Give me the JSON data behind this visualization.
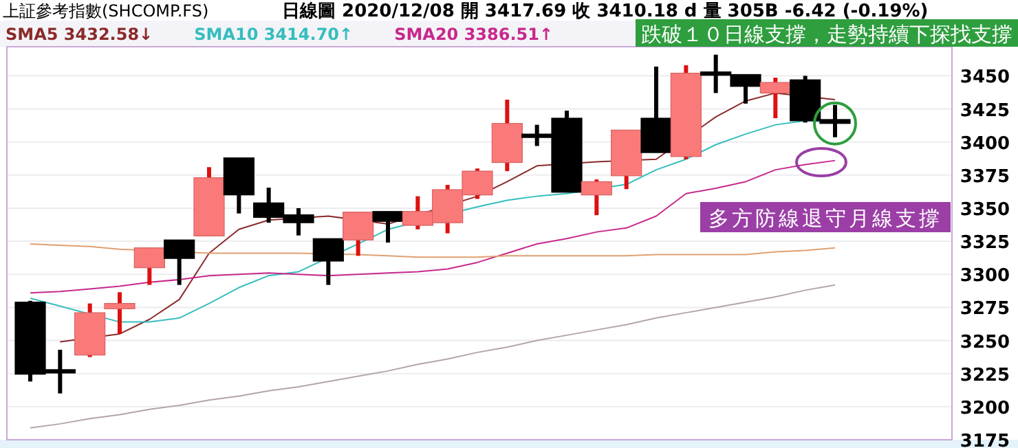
{
  "chart_data": {
    "type": "candlestick",
    "title": "上証參考指數(SHCOMP.FS)",
    "subtitle": "日線圖  2020/12/08  開 3417.69  收 3410.18 d  量 305B  -6.42 (-0.19%)",
    "categories": [
      null,
      null,
      null,
      null,
      null,
      null,
      null,
      null,
      null,
      null,
      null,
      null,
      null,
      null,
      null,
      null,
      null,
      null,
      null,
      null,
      null,
      null,
      null,
      null,
      null,
      null,
      null,
      null
    ],
    "ohlc": [
      [
        3279,
        3280,
        3219,
        3224.5
      ],
      [
        3228,
        3243,
        3210,
        3226
      ],
      [
        3239,
        3278,
        3237.5,
        3271
      ],
      [
        3274,
        3286.5,
        3255,
        3278
      ],
      [
        3305,
        3320,
        3292,
        3320
      ],
      [
        3326,
        3326,
        3292,
        3312
      ],
      [
        3329,
        3381,
        3329,
        3373
      ],
      [
        3388,
        3388,
        3346,
        3360
      ],
      [
        3354,
        3365.5,
        3339,
        3343
      ],
      [
        3345,
        3350,
        3329.4,
        3339
      ],
      [
        3327,
        3327,
        3292,
        3310
      ],
      [
        3326,
        3347,
        3314,
        3347
      ],
      [
        3347.5,
        3347.5,
        3324,
        3340
      ],
      [
        3337,
        3359,
        3334,
        3347.5
      ],
      [
        3339,
        3367.6,
        3331,
        3364
      ],
      [
        3360,
        3380,
        3357,
        3378
      ],
      [
        3384.5,
        3432,
        3378,
        3414
      ],
      [
        3406,
        3413,
        3397,
        3404
      ],
      [
        3418,
        3423.7,
        3362,
        3362
      ],
      [
        3360,
        3371.7,
        3344.7,
        3370
      ],
      [
        3374.5,
        3409,
        3364.4,
        3409
      ],
      [
        3418,
        3457,
        3392,
        3392
      ],
      [
        3389,
        3458,
        3387,
        3452
      ],
      [
        3453,
        3466,
        3437,
        3451
      ],
      [
        3451,
        3451,
        3429,
        3442
      ],
      [
        3437,
        3448.6,
        3418,
        3445
      ],
      [
        3447,
        3450,
        3414.7,
        3416
      ],
      [
        3417,
        3428,
        3403.6,
        3414
      ]
    ],
    "series": [
      {
        "name": "SMA5 3432.58↓",
        "type": "line",
        "color": "#8b2a2a",
        "values": [
          null,
          3249,
          null,
          3255,
          3266,
          3281,
          3316,
          3334,
          3341,
          null,
          3344,
          null,
          3338,
          null,
          null,
          3359,
          3370,
          3382,
          null,
          3385,
          null,
          3387,
          null,
          3419,
          3431,
          3437,
          null,
          3432
        ]
      },
      {
        "name": "SMA10 3414.70↑",
        "type": "line",
        "color": "#35bdbd",
        "values": [
          3282,
          3276,
          null,
          3264,
          3264,
          3267,
          3278,
          3290,
          3299,
          3302,
          null,
          3323,
          3334,
          null,
          null,
          3351,
          3356,
          3359,
          3361,
          null,
          3368,
          3379,
          3387,
          3398,
          3406,
          3413,
          3416,
          3415
        ]
      },
      {
        "name": "SMA20 3386.51↑",
        "type": "line",
        "color": "#c8288c",
        "values": [
          3286,
          3287,
          3289,
          3291,
          3294,
          3296,
          3299,
          3300,
          3301,
          3300,
          3299,
          3300,
          3301,
          3302,
          3304,
          3309,
          3316,
          3323,
          3327,
          3332,
          3335,
          3344,
          3361,
          3365,
          3370,
          3379,
          3383,
          3386
        ]
      },
      {
        "type": "line",
        "color": "#e0a070",
        "values": [
          3323,
          3322,
          3321,
          3319,
          3318,
          null,
          3316,
          3316,
          3316,
          3316,
          null,
          3315,
          3314,
          3313,
          3313,
          3313,
          3314,
          3314,
          3314,
          3314,
          3314,
          3315,
          3315,
          3315,
          3315,
          3317,
          3318,
          3320
        ]
      },
      {
        "type": "line",
        "color": "#b4a4a8",
        "values": [
          3184,
          3187,
          3191,
          3194,
          3198,
          3201,
          3205,
          3208,
          3212,
          3215,
          3219,
          3223,
          3227,
          3232,
          3236,
          3241,
          3245,
          3250,
          3254,
          3258,
          3262,
          3267,
          3271,
          3275,
          3279,
          3283,
          3288,
          3292
        ]
      }
    ],
    "ylim": [
      3175,
      3472
    ],
    "yticks": [
      3175,
      3200,
      3225,
      3250,
      3275,
      3300,
      3325,
      3350,
      3375,
      3400,
      3425,
      3450
    ],
    "grid": "y",
    "legend": "top left",
    "annotations": [
      "跌破１０日線支撐，走勢持續下探找支撐",
      "多方防線退守月線支撐"
    ]
  }
}
